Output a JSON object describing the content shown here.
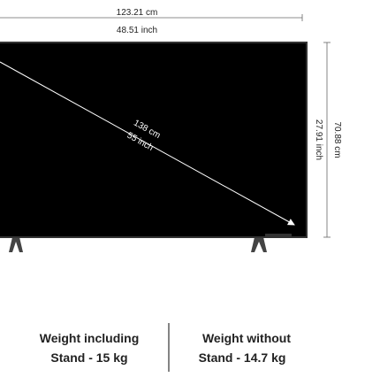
{
  "dimensions": {
    "width_cm": "123.21 cm",
    "width_inch": "48.51 inch",
    "diagonal_cm": "138 cm",
    "diagonal_inch": "55 inch",
    "height_inch": "27.91 inch",
    "height_cm": "70.88 cm"
  },
  "weights": [
    {
      "line1": "Weight including",
      "line2": "Stand - 15 kg"
    },
    {
      "line1": "Weight without",
      "line2": "Stand - 14.7 kg"
    }
  ]
}
